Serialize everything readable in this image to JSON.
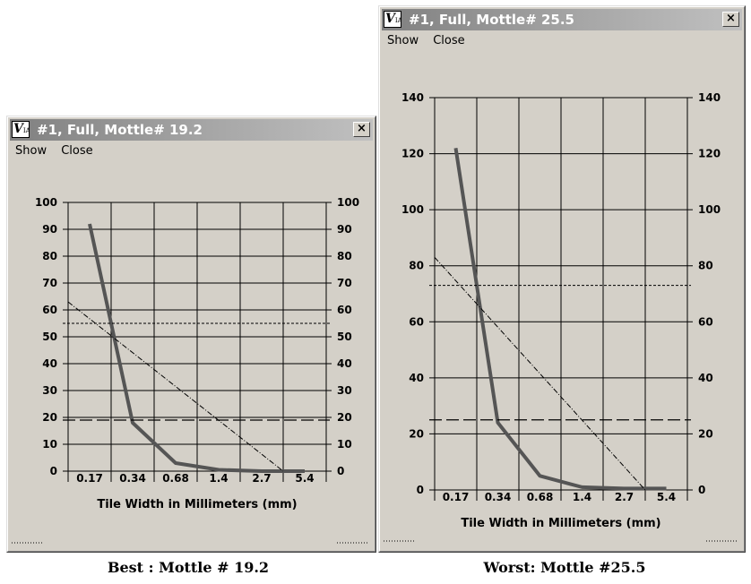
{
  "windows": [
    {
      "title": "#1, Full, Mottle# 19.2",
      "icon_text": "V",
      "icon_sub": "IA",
      "close_symbol": "×",
      "menu": [
        "Show",
        "Close"
      ],
      "caption": "Best : Mottle # 19.2",
      "x_tick_labels": [
        "0.17",
        "0.34",
        "0.68",
        "1.4",
        "2.7",
        "5.4"
      ],
      "y_tick_labels": [
        "0",
        "10",
        "20",
        "30",
        "40",
        "50",
        "60",
        "70",
        "80",
        "90",
        "100"
      ],
      "x_axis_title": "Tile Width in Millimeters (mm)"
    },
    {
      "title": "#1, Full, Mottle# 25.5",
      "icon_text": "V",
      "icon_sub": "IA",
      "close_symbol": "×",
      "menu": [
        "Show",
        "Close"
      ],
      "caption": "Worst: Mottle #25.5",
      "x_tick_labels": [
        "0.17",
        "0.34",
        "0.68",
        "1.4",
        "2.7",
        "5.4"
      ],
      "y_tick_labels": [
        "0",
        "20",
        "40",
        "60",
        "80",
        "100",
        "120",
        "140"
      ],
      "x_axis_title": "Tile Width in Millimeters (mm)"
    }
  ],
  "chart_data": [
    {
      "type": "line",
      "xlabel": "Tile Width in Millimeters (mm)",
      "ylabel": "",
      "categories": [
        "0.17",
        "0.34",
        "0.68",
        "1.4",
        "2.7",
        "5.4"
      ],
      "ylim": [
        0,
        100
      ],
      "y_ticks": [
        0,
        10,
        20,
        30,
        40,
        50,
        60,
        70,
        80,
        90,
        100
      ],
      "grid": true,
      "series": [
        {
          "style": "thick-solid",
          "values": [
            92,
            18,
            3,
            0.5,
            0,
            0
          ]
        },
        {
          "style": "dash-dot-diagonal",
          "points": [
            [
              0,
              63
            ],
            [
              5.0,
              0
            ]
          ]
        },
        {
          "style": "short-dash-horizontal",
          "value": 55
        },
        {
          "style": "long-dash-horizontal",
          "value": 19
        }
      ],
      "colors": {
        "thick-solid": "#555555",
        "reference-lines": "#000000"
      }
    },
    {
      "type": "line",
      "xlabel": "Tile Width in Millimeters (mm)",
      "ylabel": "",
      "categories": [
        "0.17",
        "0.34",
        "0.68",
        "1.4",
        "2.7",
        "5.4"
      ],
      "ylim": [
        0,
        140
      ],
      "y_ticks": [
        0,
        20,
        40,
        60,
        80,
        100,
        120,
        140
      ],
      "grid": true,
      "series": [
        {
          "style": "thick-solid",
          "values": [
            122,
            24,
            5,
            1,
            0.5,
            0.5
          ]
        },
        {
          "style": "dash-dot-diagonal",
          "points": [
            [
              0,
              83
            ],
            [
              5.0,
              0
            ]
          ]
        },
        {
          "style": "short-dash-horizontal",
          "value": 73
        },
        {
          "style": "long-dash-horizontal",
          "value": 25
        }
      ],
      "colors": {
        "thick-solid": "#555555",
        "reference-lines": "#000000"
      }
    }
  ]
}
